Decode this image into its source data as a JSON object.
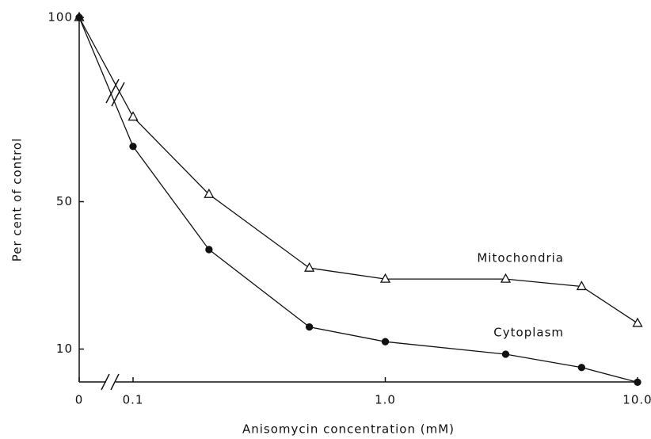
{
  "chart_data": {
    "type": "line",
    "xlabel": "Anisomycin concentration (mM)",
    "ylabel": "Per cent of control",
    "x": [
      0,
      0.1,
      0.2,
      0.5,
      1,
      3,
      6,
      10
    ],
    "xscale": "log",
    "xlim": [
      0.1,
      10
    ],
    "xticks": [
      0,
      0.1,
      {
        "value": 1,
        "label": "1.0"
      },
      {
        "value": 10,
        "label": "10.0"
      }
    ],
    "ylim": [
      0,
      100
    ],
    "yticks": [
      10,
      50,
      100
    ],
    "series": [
      {
        "name": "Mitochondria",
        "color": "#111111",
        "marker": "open-triangle",
        "values": [
          100,
          73,
          52,
          32,
          29,
          29,
          27,
          17
        ]
      },
      {
        "name": "Cytoplasm",
        "color": "#111111",
        "marker": "filled-circle",
        "values": [
          100,
          65,
          37,
          16,
          12,
          8.6,
          5,
          1
        ]
      }
    ]
  }
}
